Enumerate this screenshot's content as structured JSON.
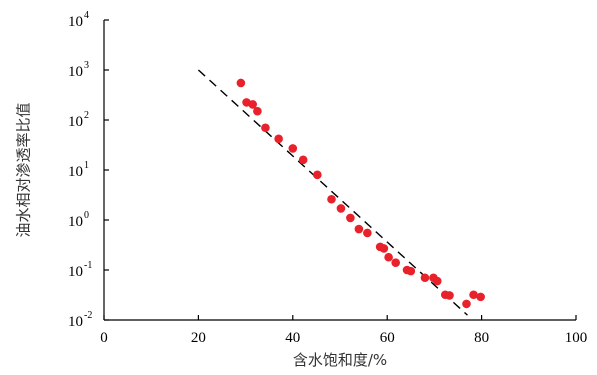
{
  "chart_data": {
    "type": "scatter",
    "xlabel": "含水饱和度/%",
    "ylabel": "油水相对渗透率比值",
    "xlim": [
      0,
      100
    ],
    "ylim_log10": [
      -2,
      4
    ],
    "y_scale": "log",
    "grid": false,
    "x_ticks": [
      "0",
      "20",
      "40",
      "60",
      "80",
      "100"
    ],
    "y_ticks": [
      {
        "base": "10",
        "exp": "-2",
        "exp_value": -2
      },
      {
        "base": "10",
        "exp": "-1",
        "exp_value": -1
      },
      {
        "base": "10",
        "exp": "0",
        "exp_value": 0
      },
      {
        "base": "10",
        "exp": "1",
        "exp_value": 1
      },
      {
        "base": "10",
        "exp": "2",
        "exp_value": 2
      },
      {
        "base": "10",
        "exp": "3",
        "exp_value": 3
      },
      {
        "base": "10",
        "exp": "4",
        "exp_value": 4
      }
    ],
    "points": [
      {
        "x": 29.0,
        "y": 550
      },
      {
        "x": 30.2,
        "y": 225
      },
      {
        "x": 31.5,
        "y": 205
      },
      {
        "x": 32.5,
        "y": 150
      },
      {
        "x": 34.2,
        "y": 70
      },
      {
        "x": 37.0,
        "y": 42
      },
      {
        "x": 40.0,
        "y": 27
      },
      {
        "x": 42.2,
        "y": 16
      },
      {
        "x": 45.2,
        "y": 8.0
      },
      {
        "x": 48.2,
        "y": 2.6
      },
      {
        "x": 50.2,
        "y": 1.7
      },
      {
        "x": 52.2,
        "y": 1.1
      },
      {
        "x": 54.0,
        "y": 0.66
      },
      {
        "x": 55.8,
        "y": 0.55
      },
      {
        "x": 58.5,
        "y": 0.29
      },
      {
        "x": 59.3,
        "y": 0.27
      },
      {
        "x": 60.3,
        "y": 0.18
      },
      {
        "x": 61.8,
        "y": 0.14
      },
      {
        "x": 64.2,
        "y": 0.1
      },
      {
        "x": 65.0,
        "y": 0.095
      },
      {
        "x": 68.0,
        "y": 0.07
      },
      {
        "x": 69.8,
        "y": 0.07
      },
      {
        "x": 70.6,
        "y": 0.06
      },
      {
        "x": 72.3,
        "y": 0.032
      },
      {
        "x": 73.2,
        "y": 0.031
      },
      {
        "x": 76.8,
        "y": 0.021
      },
      {
        "x": 78.3,
        "y": 0.032
      },
      {
        "x": 79.8,
        "y": 0.029
      }
    ],
    "fit_line": {
      "style": "dashed",
      "start": {
        "x": 20,
        "y": 1000
      },
      "end": {
        "x": 77,
        "y": 0.0125
      }
    }
  }
}
